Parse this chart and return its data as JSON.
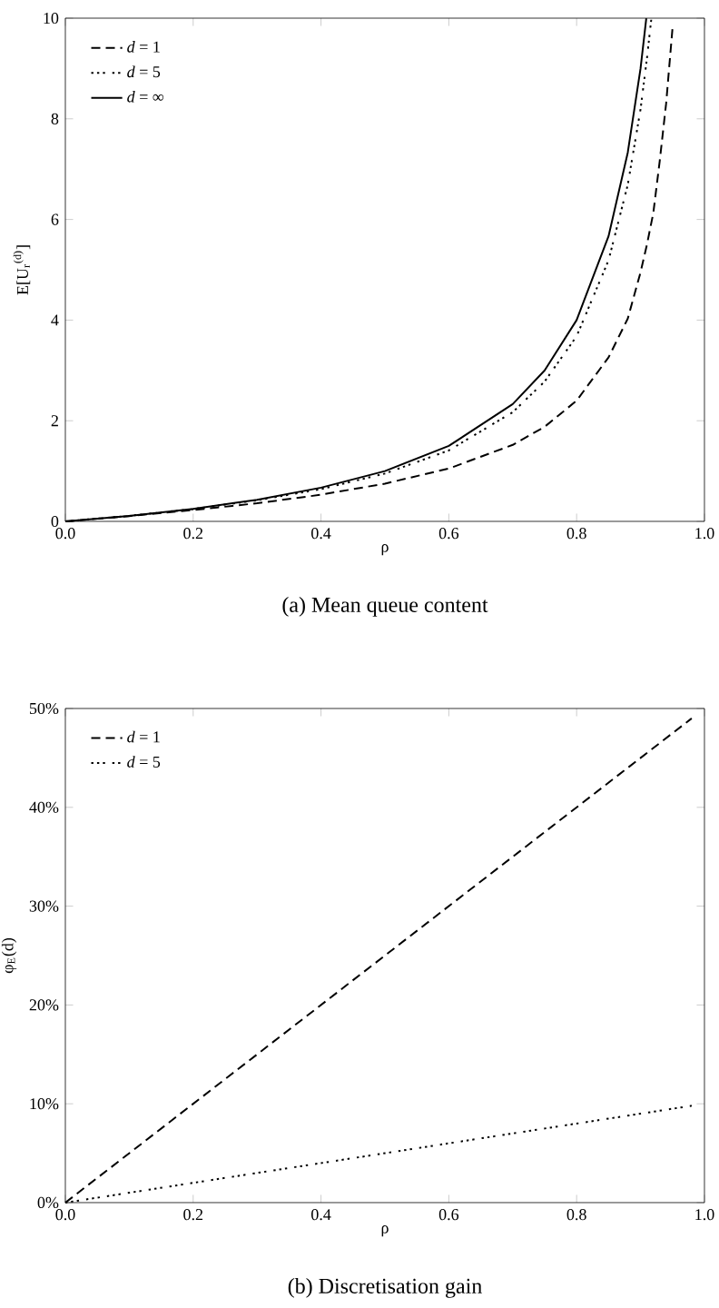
{
  "chart_data": [
    {
      "type": "line",
      "xlabel": "ρ",
      "ylabel": "E[U$_{r}$$^{(d)}$]",
      "annotations": [
        "(a) Mean queue content"
      ],
      "xlim": [
        0,
        1
      ],
      "ylim": [
        0,
        10
      ],
      "xticks": [
        {
          "value": 0,
          "label": "0.0"
        },
        {
          "value": 0.2,
          "label": "0.2"
        },
        {
          "value": 0.4,
          "label": "0.4"
        },
        {
          "value": 0.6,
          "label": "0.6"
        },
        {
          "value": 0.8,
          "label": "0.8"
        },
        {
          "value": 1,
          "label": "1.0"
        }
      ],
      "yticks": [
        0,
        2,
        4,
        6,
        8,
        10
      ],
      "legend": "top left",
      "grid": false,
      "x": [
        0,
        0.1,
        0.2,
        0.3,
        0.4,
        0.5,
        0.6,
        0.7,
        0.75,
        0.8,
        0.85,
        0.88,
        0.9,
        0.91,
        0.92,
        0.93,
        0.94,
        0.95
      ],
      "series": [
        {
          "name": "*d* = 1",
          "color": "#000000",
          "line_style": "dashed",
          "values": [
            0,
            0.105,
            0.225,
            0.36,
            0.53,
            0.75,
            1.05,
            1.52,
            1.88,
            2.4,
            3.26,
            4.03,
            4.95,
            5.5,
            6.13,
            7.16,
            8.3,
            9.8
          ]
        },
        {
          "name": "*d* = 5",
          "color": "#000000",
          "line_style": "dotted",
          "x": [
            0,
            0.1,
            0.2,
            0.3,
            0.4,
            0.5,
            0.6,
            0.7,
            0.75,
            0.8,
            0.85,
            0.88,
            0.9,
            0.91,
            0.917
          ],
          "values": [
            0,
            0.11,
            0.245,
            0.42,
            0.64,
            0.95,
            1.41,
            2.17,
            2.78,
            3.68,
            5.19,
            6.69,
            8.19,
            9.2,
            10
          ]
        },
        {
          "name": "*d* = ∞",
          "color": "#000000",
          "line_style": "solid",
          "x": [
            0,
            0.1,
            0.2,
            0.3,
            0.4,
            0.5,
            0.6,
            0.7,
            0.75,
            0.8,
            0.85,
            0.88,
            0.9,
            0.909
          ],
          "values": [
            0,
            0.11,
            0.25,
            0.43,
            0.67,
            1.0,
            1.5,
            2.33,
            3.0,
            4.0,
            5.67,
            7.33,
            9.0,
            10
          ]
        }
      ]
    },
    {
      "type": "line",
      "xlabel": "ρ",
      "ylabel": "φ$_{E}$(d)",
      "annotations": [
        "(b) Discretisation gain"
      ],
      "xlim": [
        0,
        1
      ],
      "ylim": [
        0,
        50
      ],
      "xticks": [
        {
          "value": 0,
          "label": "0.0"
        },
        {
          "value": 0.2,
          "label": "0.2"
        },
        {
          "value": 0.4,
          "label": "0.4"
        },
        {
          "value": 0.6,
          "label": "0.6"
        },
        {
          "value": 0.8,
          "label": "0.8"
        },
        {
          "value": 1,
          "label": "1.0"
        }
      ],
      "yticks": [
        {
          "value": 0,
          "label": "0%"
        },
        {
          "value": 10,
          "label": "10%"
        },
        {
          "value": 20,
          "label": "20%"
        },
        {
          "value": 30,
          "label": "30%"
        },
        {
          "value": 40,
          "label": "40%"
        },
        {
          "value": 50,
          "label": "50%"
        }
      ],
      "legend": "top left",
      "grid": false,
      "x": [
        0,
        0.98
      ],
      "series": [
        {
          "name": "*d* = 1",
          "color": "#000000",
          "line_style": "dashed",
          "values": [
            0,
            49
          ]
        },
        {
          "name": "*d* = 5",
          "color": "#000000",
          "line_style": "dotted",
          "values": [
            0,
            9.8
          ]
        }
      ]
    }
  ]
}
